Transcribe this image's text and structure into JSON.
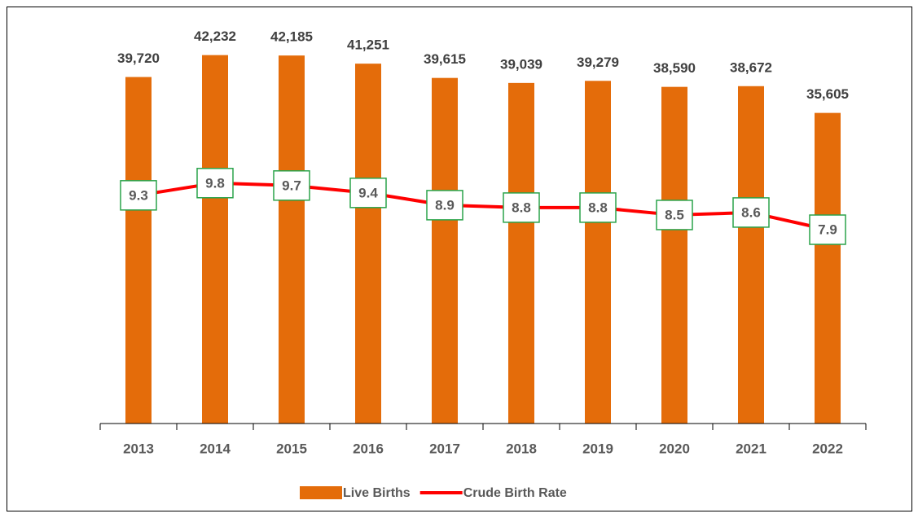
{
  "chart_data": {
    "type": "bar",
    "categories": [
      "2013",
      "2014",
      "2015",
      "2016",
      "2017",
      "2018",
      "2019",
      "2020",
      "2021",
      "2022"
    ],
    "series": [
      {
        "name": "Live Births",
        "type": "bar",
        "color": "#e46c0a",
        "values": [
          39720,
          42232,
          42185,
          41251,
          39615,
          39039,
          39279,
          38590,
          38672,
          35605
        ],
        "value_labels": [
          "39,720",
          "42,232",
          "42,185",
          "41,251",
          "39,615",
          "39,039",
          "39,279",
          "38,590",
          "38,672",
          "35,605"
        ]
      },
      {
        "name": "Crude Birth Rate",
        "type": "line",
        "axis": "y2",
        "color": "#ff0000",
        "values": [
          9.3,
          9.8,
          9.7,
          9.4,
          8.9,
          8.8,
          8.8,
          8.5,
          8.6,
          7.9
        ]
      }
    ],
    "ylim": [
      0,
      45000
    ],
    "y2lim": [
      0,
      16
    ],
    "legend": "bottom"
  }
}
